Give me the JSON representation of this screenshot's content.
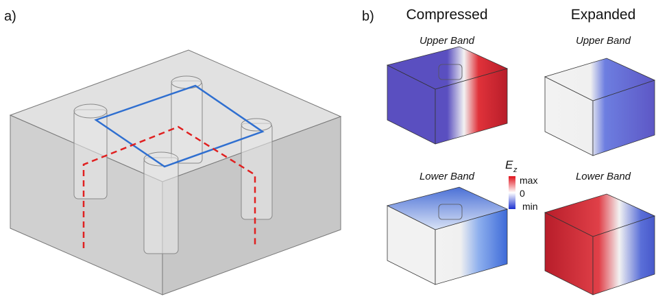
{
  "panel_a": {
    "label": "a)"
  },
  "panel_b": {
    "label": "b)",
    "columns": [
      {
        "title": "Compressed",
        "rows": [
          "Upper Band",
          "Lower Band"
        ]
      },
      {
        "title": "Expanded",
        "rows": [
          "Upper Band",
          "Lower Band"
        ]
      }
    ],
    "colorbar": {
      "symbol": "E",
      "subscript": "z",
      "max": "max",
      "zero": "0",
      "min": "min"
    }
  }
}
